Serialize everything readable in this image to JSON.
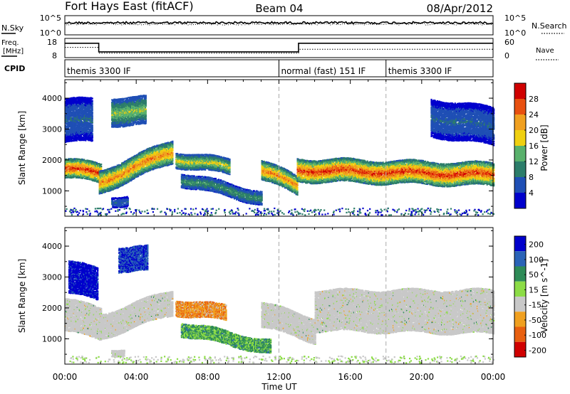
{
  "header": {
    "station": "Fort Hays East (fitACF)",
    "beam": "Beam 04",
    "date": "08/Apr/2012"
  },
  "colors": {
    "power_scale": [
      "#0000cc",
      "#1f4fb5",
      "#2c7d6a",
      "#59b16c",
      "#f0d010",
      "#f0a020",
      "#e85010",
      "#d00000"
    ],
    "velocity_scale": [
      "#0000cc",
      "#2a63b7",
      "#2e8b57",
      "#8cdc46",
      "#c8c8c8",
      "#f0a020",
      "#e86010",
      "#d00000"
    ],
    "ground_scatter": "#c8c8c8"
  },
  "nsky_panel": {
    "left_label": "N.Sky",
    "left_ticks": [
      "10^5",
      "10^0"
    ],
    "right_label": "N.Search",
    "right_ticks": [
      "10^5",
      "10^0"
    ]
  },
  "freq_panel": {
    "left_label_1": "Freq.",
    "left_label_2": "[MHz]",
    "left_ticks": [
      "18",
      "8"
    ],
    "right_label": "Nave",
    "right_ticks": [
      "60",
      "0"
    ]
  },
  "cpid": {
    "label": "CPID",
    "segments": [
      {
        "text": "themis 3300 IF",
        "start_hour": 0
      },
      {
        "text": "normal (fast) 151 IF",
        "start_hour": 12
      },
      {
        "text": "themis 3300 IF",
        "start_hour": 18
      }
    ]
  },
  "x_axis": {
    "label": "Time UT",
    "ticks": [
      "00:00",
      "04:00",
      "08:00",
      "12:00",
      "16:00",
      "20:00",
      "00:00"
    ]
  },
  "chart_data": [
    {
      "type": "line",
      "name": "Frequency / Nave",
      "x_unit": "hours UT",
      "xlim": [
        0,
        24
      ],
      "series": [
        {
          "name": "Freq.",
          "style": "solid",
          "points": [
            [
              0,
              15.5
            ],
            [
              1.9,
              15.5
            ],
            [
              1.9,
              11.0
            ],
            [
              13.1,
              11.0
            ],
            [
              13.1,
              15.5
            ],
            [
              24,
              15.5
            ]
          ]
        },
        {
          "name": "Nave",
          "style": "dotted",
          "points": [
            [
              0,
              32
            ],
            [
              1.9,
              32
            ],
            [
              1.9,
              14
            ],
            [
              13.1,
              14
            ],
            [
              13.1,
              26
            ],
            [
              24,
              26
            ]
          ]
        }
      ]
    },
    {
      "type": "heatmap",
      "name": "Power",
      "colorbar_label": "Power [dB]",
      "colorbar_ticks": [
        "28",
        "24",
        "20",
        "16",
        "12",
        "8",
        "4"
      ],
      "ylabel": "Slant Range [km]",
      "y_ticks": [
        "4000",
        "3000",
        "2000",
        "1000"
      ],
      "xlim": [
        0,
        24
      ],
      "ylim": [
        180,
        4600
      ],
      "scatter_bands": [
        {
          "x": [
            0.0,
            2.0
          ],
          "y_center": [
            1750,
            1600
          ],
          "width": 300,
          "peak_db": 28
        },
        {
          "x": [
            1.9,
            6.0
          ],
          "y_center": [
            1300,
            2300
          ],
          "width": 350,
          "peak_db": 24
        },
        {
          "x": [
            6.2,
            9.2
          ],
          "y_center": [
            2050,
            1800
          ],
          "width": 250,
          "peak_db": 18
        },
        {
          "x": [
            11.0,
            13.0
          ],
          "y_center": [
            1700,
            1200
          ],
          "width": 300,
          "peak_db": 24
        },
        {
          "x": [
            13.0,
            24.0
          ],
          "y_center": [
            1700,
            1550
          ],
          "width": 350,
          "peak_db": 28
        },
        {
          "x": [
            6.5,
            11.0
          ],
          "y_center": [
            1400,
            800
          ],
          "width": 200,
          "peak_db": 12
        },
        {
          "x": [
            2.6,
            3.5
          ],
          "y_center": [
            700,
            700
          ],
          "width": 150,
          "peak_db": 8
        },
        {
          "x": [
            2.6,
            4.5
          ],
          "y_center": [
            3600,
            3600
          ],
          "width": 450,
          "peak_db": 16
        },
        {
          "x": [
            0.0,
            1.5
          ],
          "y_center": [
            3300,
            3300
          ],
          "width": 700,
          "peak_db": 8
        },
        {
          "x": [
            20.5,
            24.0
          ],
          "y_center": [
            3400,
            3100
          ],
          "width": 600,
          "peak_db": 8
        }
      ]
    },
    {
      "type": "heatmap",
      "name": "Velocity",
      "colorbar_label": "Velocity [m s^-1]",
      "colorbar_ticks": [
        "200",
        "100",
        "50",
        "15",
        "-15",
        "-50",
        "-100",
        "-200"
      ],
      "ylabel": "Slant Range [km]",
      "y_ticks": [
        "4000",
        "3000",
        "2000",
        "1000"
      ],
      "xlim": [
        0,
        24
      ],
      "ylim": [
        180,
        4600
      ],
      "scatter_bands": [
        {
          "x": [
            0.0,
            2.0
          ],
          "y_center": [
            1800,
            1500
          ],
          "width": 500,
          "mean_vel": 0
        },
        {
          "x": [
            1.9,
            6.0
          ],
          "y_center": [
            1400,
            2200
          ],
          "width": 400,
          "mean_vel": 0
        },
        {
          "x": [
            6.2,
            9.0
          ],
          "y_center": [
            2050,
            1850
          ],
          "width": 250,
          "mean_vel": -60
        },
        {
          "x": [
            11.0,
            14.0
          ],
          "y_center": [
            1800,
            1300
          ],
          "width": 400,
          "mean_vel": 0
        },
        {
          "x": [
            14.0,
            24.0
          ],
          "y_center": [
            1800,
            1700
          ],
          "width": 500,
          "mean_vel": 0
        },
        {
          "x": [
            6.5,
            11.5
          ],
          "y_center": [
            1350,
            750
          ],
          "width": 200,
          "mean_vel": 40
        },
        {
          "x": [
            2.6,
            3.3
          ],
          "y_center": [
            600,
            600
          ],
          "width": 100,
          "mean_vel": 0
        },
        {
          "x": [
            3.0,
            4.6
          ],
          "y_center": [
            3600,
            3600
          ],
          "width": 400,
          "mean_vel": 150
        },
        {
          "x": [
            0.2,
            1.8
          ],
          "y_center": [
            3000,
            2800
          ],
          "width": 500,
          "mean_vel": 180
        },
        {
          "x": [
            14.0,
            24.0
          ],
          "y_center": [
            2350,
            2350
          ],
          "width": 250,
          "mean_vel": 0
        }
      ]
    }
  ]
}
